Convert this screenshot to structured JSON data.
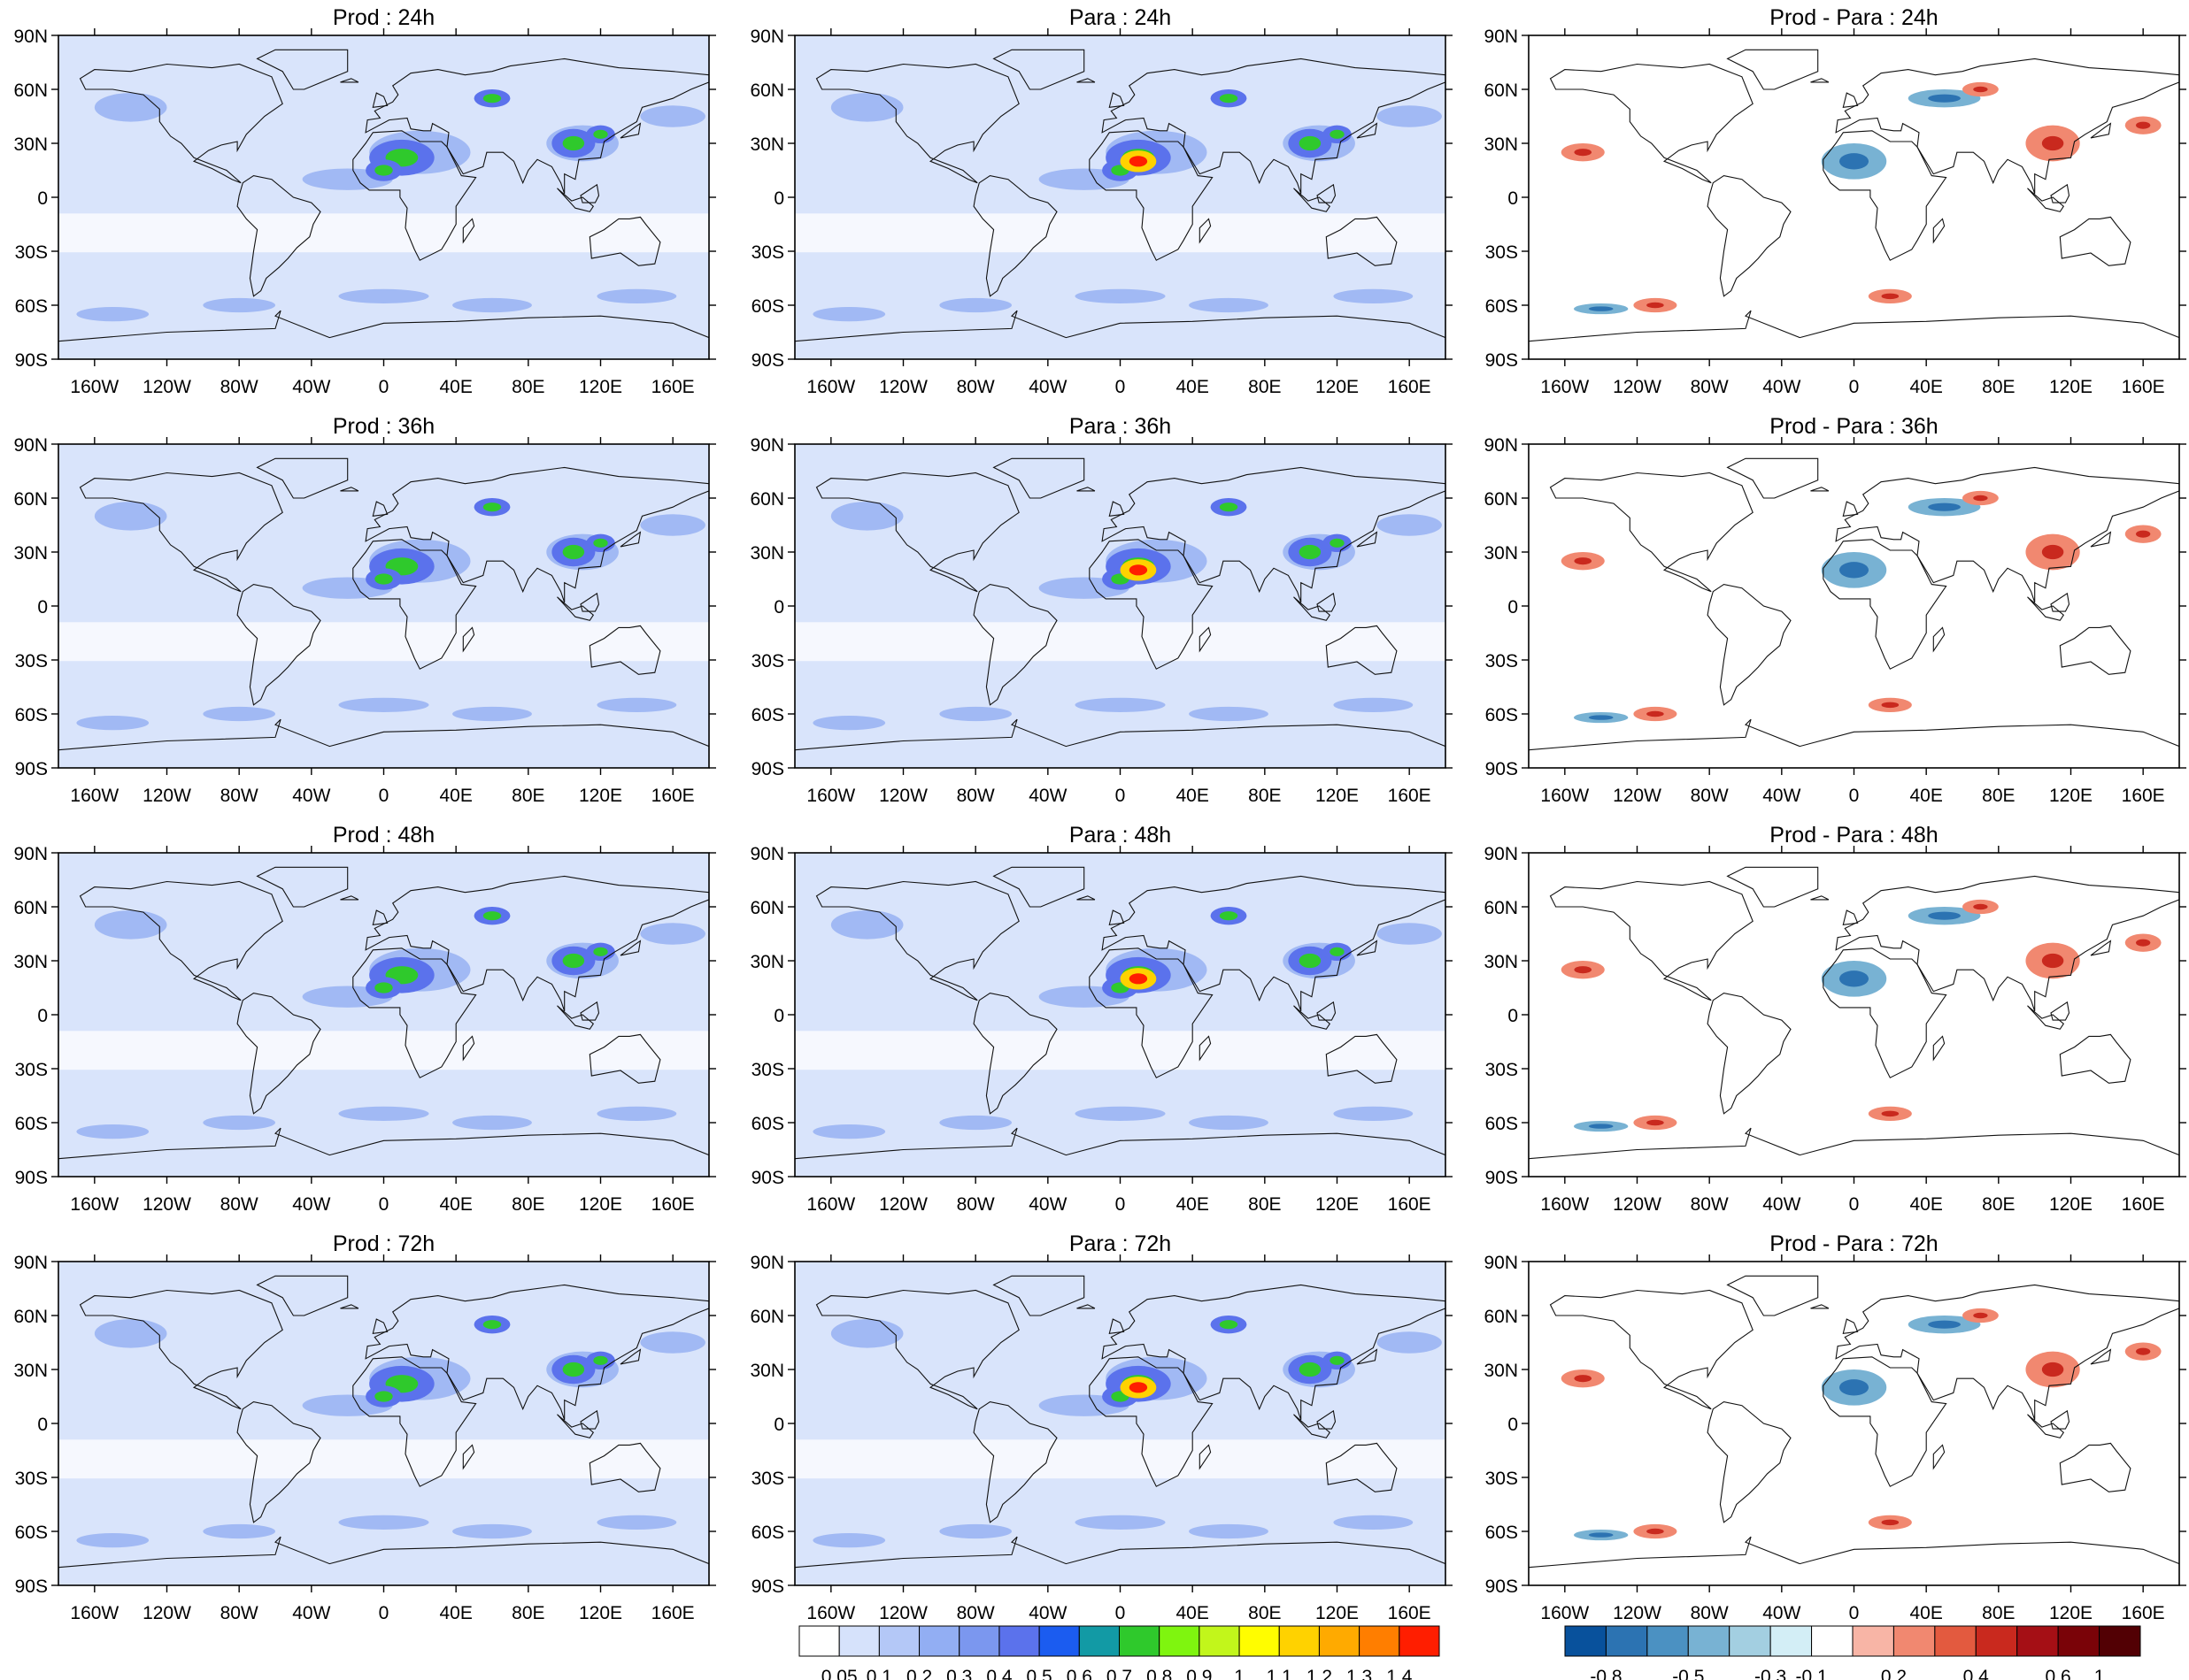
{
  "panels": [
    {
      "title": "Prod : 24h",
      "kind": "field",
      "lead": "24h",
      "run": "Prod"
    },
    {
      "title": "Para : 24h",
      "kind": "field",
      "lead": "24h",
      "run": "Para"
    },
    {
      "title": "Prod - Para : 24h",
      "kind": "diff",
      "lead": "24h"
    },
    {
      "title": "Prod : 36h",
      "kind": "field",
      "lead": "36h",
      "run": "Prod"
    },
    {
      "title": "Para : 36h",
      "kind": "field",
      "lead": "36h",
      "run": "Para"
    },
    {
      "title": "Prod - Para : 36h",
      "kind": "diff",
      "lead": "36h"
    },
    {
      "title": "Prod : 48h",
      "kind": "field",
      "lead": "48h",
      "run": "Prod"
    },
    {
      "title": "Para : 48h",
      "kind": "field",
      "lead": "48h",
      "run": "Para"
    },
    {
      "title": "Prod - Para : 48h",
      "kind": "diff",
      "lead": "48h"
    },
    {
      "title": "Prod : 72h",
      "kind": "field",
      "lead": "72h",
      "run": "Prod"
    },
    {
      "title": "Para : 72h",
      "kind": "field",
      "lead": "72h",
      "run": "Para"
    },
    {
      "title": "Prod - Para : 72h",
      "kind": "diff",
      "lead": "72h"
    }
  ],
  "lat_labels": [
    "90N",
    "60N",
    "30N",
    "0",
    "30S",
    "60S",
    "90S"
  ],
  "lon_labels": [
    "160W",
    "120W",
    "80W",
    "40W",
    "0",
    "40E",
    "80E",
    "120E",
    "160E"
  ],
  "lon_values": [
    -160,
    -120,
    -80,
    -40,
    0,
    40,
    80,
    120,
    160
  ],
  "lat_values": [
    90,
    60,
    30,
    0,
    -30,
    -60,
    -90
  ],
  "field_colorbar": {
    "labels": [
      "0.05",
      "0.1",
      "0.2",
      "0.3",
      "0.4",
      "0.5",
      "0.6",
      "0.7",
      "0.8",
      "0.9",
      "1",
      "1.1",
      "1.2",
      "1.3",
      "1.4"
    ],
    "colors": [
      "#ffffff",
      "#d6e2fb",
      "#b4c8f7",
      "#92aef3",
      "#7b97ef",
      "#5b72ec",
      "#1b5cf0",
      "#129aa5",
      "#2fc92c",
      "#7ff50f",
      "#c2f61b",
      "#fffd00",
      "#ffd200",
      "#ffaa00",
      "#ff7e00",
      "#ff1e00"
    ]
  },
  "diff_colorbar": {
    "labels": [
      "-0.8",
      "-0.5",
      "-0.3",
      "-0.1",
      "0.2",
      "0.4",
      "0.6",
      "1"
    ],
    "colors": [
      "#08519c",
      "#2c73b2",
      "#4b91c2",
      "#78b2d3",
      "#a3cfe1",
      "#d3eef6",
      "#ffffff",
      "#f8b5a6",
      "#f18870",
      "#e35a3f",
      "#c9291e",
      "#a50f15",
      "#7a0308",
      "#520004"
    ]
  }
}
